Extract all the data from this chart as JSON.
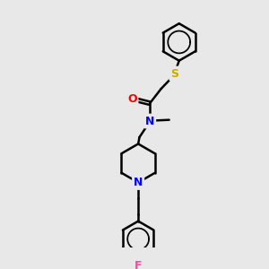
{
  "bg_color": "#e8e8e8",
  "atom_colors": {
    "O": "#ff0000",
    "N_amide": "#0000ff",
    "N_pip": "#0000ff",
    "S": "#ccaa00",
    "F": "#ff44aa",
    "C": "#000000"
  },
  "bond_color": "#000000",
  "bond_width": 1.8,
  "figsize": [
    3.0,
    3.0
  ],
  "dpi": 100
}
